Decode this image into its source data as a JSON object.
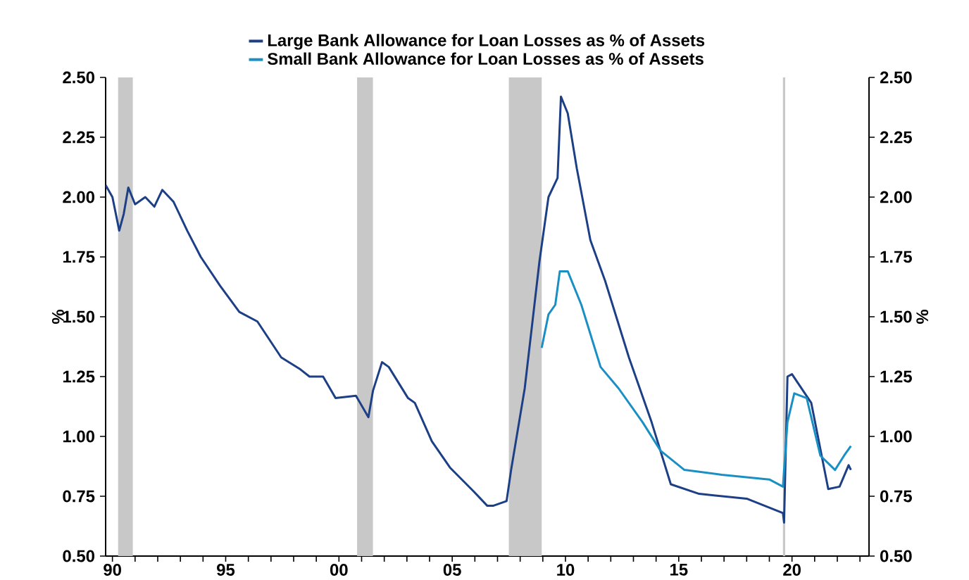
{
  "chart_data": {
    "type": "line",
    "x": [
      1989.7,
      1990.0,
      1990.3,
      1990.5,
      1990.7,
      1991.0,
      1991.45,
      1991.85,
      1992.2,
      1992.7,
      1993.3,
      1993.9,
      1994.75,
      1995.6,
      1996.4,
      1997.45,
      1998.3,
      1998.7,
      1999.3,
      1999.85,
      2000.75,
      2001.3,
      2001.5,
      2001.9,
      2002.2,
      2003.05,
      2003.35,
      2004.1,
      2004.9,
      2005.95,
      2006.55,
      2006.8,
      2007.4,
      2007.6,
      2008.2,
      2008.85,
      2009.25,
      2009.65,
      2009.8,
      2010.1,
      2010.5,
      2011.1,
      2011.75,
      2012.8,
      2013.8,
      2014.65,
      2015.9,
      2018.0,
      2019.6,
      2019.65,
      2019.8,
      2020.0,
      2020.85,
      2021.6,
      2022.1,
      2022.5,
      2022.6
    ],
    "series": [
      {
        "name": "Large Bank Allowance for Loan Losses as % of Assets",
        "color": "#1c3f86",
        "values": [
          2.05,
          2.0,
          1.86,
          1.93,
          2.04,
          1.97,
          2.0,
          1.96,
          2.03,
          1.98,
          1.86,
          1.75,
          1.63,
          1.52,
          1.48,
          1.33,
          1.28,
          1.25,
          1.25,
          1.16,
          1.17,
          1.08,
          1.19,
          1.31,
          1.29,
          1.16,
          1.14,
          0.98,
          0.87,
          0.77,
          0.71,
          0.71,
          0.73,
          0.86,
          1.2,
          1.73,
          2.0,
          2.08,
          2.42,
          2.35,
          2.12,
          1.82,
          1.65,
          1.33,
          1.06,
          0.8,
          0.76,
          0.74,
          0.68,
          0.64,
          1.25,
          1.26,
          1.14,
          0.78,
          0.79,
          0.88,
          0.86
        ]
      },
      {
        "name": "Small Bank Allowance for Loan Losses as % of Assets",
        "color": "#1a8fc4",
        "x": [
          2008.95,
          2009.25,
          2009.55,
          2009.75,
          2010.1,
          2010.7,
          2011.55,
          2012.35,
          2013.4,
          2014.2,
          2015.25,
          2016.9,
          2019.0,
          2019.6,
          2019.8,
          2020.1,
          2020.65,
          2021.25,
          2021.9,
          2022.3,
          2022.6
        ],
        "values": [
          1.37,
          1.51,
          1.55,
          1.69,
          1.69,
          1.55,
          1.29,
          1.2,
          1.06,
          0.94,
          0.86,
          0.84,
          0.82,
          0.79,
          1.06,
          1.18,
          1.16,
          0.92,
          0.86,
          0.92,
          0.96
        ]
      }
    ],
    "ylabel": "%",
    "y2label": "%",
    "xlim": [
      1989.7,
      2023.4
    ],
    "xticks": [
      {
        "value": 1990,
        "label": "90"
      },
      {
        "value": 1991,
        "label": null
      },
      {
        "value": 1992,
        "label": null
      },
      {
        "value": 1993,
        "label": null
      },
      {
        "value": 1994,
        "label": null
      },
      {
        "value": 1995,
        "label": "95"
      },
      {
        "value": 1996,
        "label": null
      },
      {
        "value": 1997,
        "label": null
      },
      {
        "value": 1998,
        "label": null
      },
      {
        "value": 1999,
        "label": null
      },
      {
        "value": 2000,
        "label": "00"
      },
      {
        "value": 2001,
        "label": null
      },
      {
        "value": 2002,
        "label": null
      },
      {
        "value": 2003,
        "label": null
      },
      {
        "value": 2004,
        "label": null
      },
      {
        "value": 2005,
        "label": "05"
      },
      {
        "value": 2006,
        "label": null
      },
      {
        "value": 2007,
        "label": null
      },
      {
        "value": 2008,
        "label": null
      },
      {
        "value": 2009,
        "label": null
      },
      {
        "value": 2010,
        "label": "10"
      },
      {
        "value": 2011,
        "label": null
      },
      {
        "value": 2012,
        "label": null
      },
      {
        "value": 2013,
        "label": null
      },
      {
        "value": 2014,
        "label": null
      },
      {
        "value": 2015,
        "label": "15"
      },
      {
        "value": 2016,
        "label": null
      },
      {
        "value": 2017,
        "label": null
      },
      {
        "value": 2018,
        "label": null
      },
      {
        "value": 2019,
        "label": null
      },
      {
        "value": 2020,
        "label": "20"
      },
      {
        "value": 2021,
        "label": null
      },
      {
        "value": 2022,
        "label": null
      },
      {
        "value": 2023,
        "label": null
      }
    ],
    "ylim": [
      0.5,
      2.5
    ],
    "yticks": [
      {
        "value": 0.5,
        "label": "0.50"
      },
      {
        "value": 0.75,
        "label": "0.75"
      },
      {
        "value": 1.0,
        "label": "1.00"
      },
      {
        "value": 1.25,
        "label": "1.25"
      },
      {
        "value": 1.5,
        "label": "1.50"
      },
      {
        "value": 1.75,
        "label": "1.75"
      },
      {
        "value": 2.0,
        "label": "2.00"
      },
      {
        "value": 2.25,
        "label": "2.25"
      },
      {
        "value": 2.5,
        "label": "2.50"
      }
    ],
    "y2lim": [
      0.5,
      2.5
    ],
    "y2ticks": [
      {
        "value": 0.5,
        "label": "0.50"
      },
      {
        "value": 0.75,
        "label": "0.75"
      },
      {
        "value": 1.0,
        "label": "1.00"
      },
      {
        "value": 1.25,
        "label": "1.25"
      },
      {
        "value": 1.5,
        "label": "1.50"
      },
      {
        "value": 1.75,
        "label": "1.75"
      },
      {
        "value": 2.0,
        "label": "2.00"
      },
      {
        "value": 2.25,
        "label": "2.25"
      },
      {
        "value": 2.5,
        "label": "2.50"
      }
    ],
    "bands": [
      {
        "axis": "x",
        "from": 1990.25,
        "to": 1990.9,
        "color": "#c8c8c8"
      },
      {
        "axis": "x",
        "from": 2000.8,
        "to": 2001.5,
        "color": "#c8c8c8"
      },
      {
        "axis": "x",
        "from": 2007.5,
        "to": 2008.95,
        "color": "#c8c8c8"
      },
      {
        "axis": "x",
        "from": 2019.6,
        "to": 2019.7,
        "color": "#c8c8c8"
      }
    ],
    "legend": "top",
    "grid": false,
    "marker": "none",
    "line_style": "solid"
  }
}
